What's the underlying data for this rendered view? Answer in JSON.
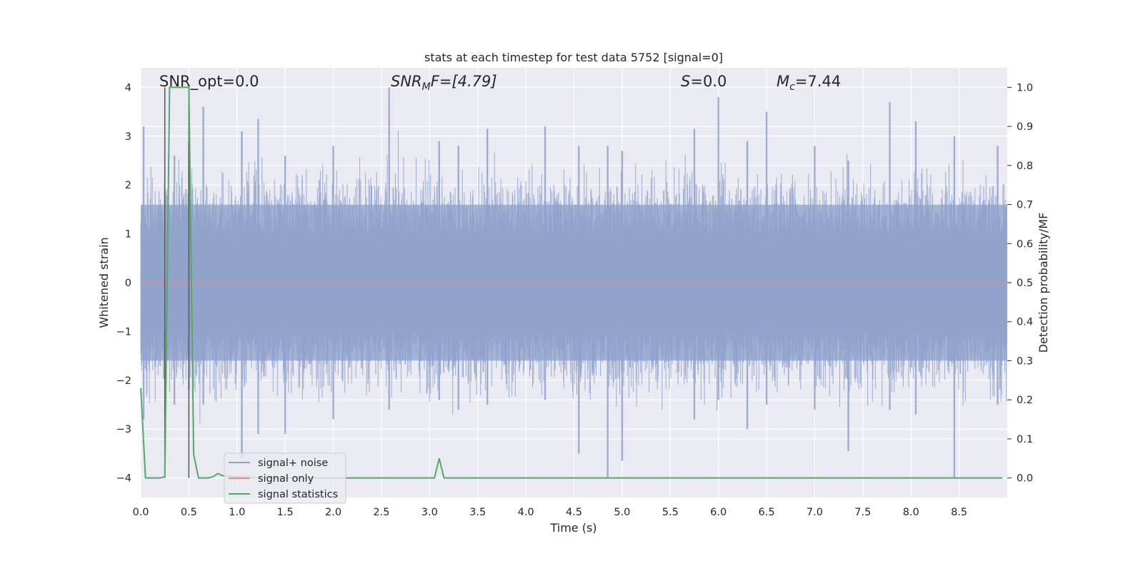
{
  "chart_data": {
    "type": "line",
    "title": "stats at each timestep for test data 5752 [signal=0]",
    "xlabel": "Time (s)",
    "ylabel_left": "Whitened strain",
    "ylabel_right": "Detection probability/MF",
    "xlim": [
      0,
      9.0
    ],
    "ylim_left": [
      -4.4,
      4.4
    ],
    "ylim_right": [
      -0.05,
      1.05
    ],
    "xticks": [
      "0.0",
      "0.5",
      "1.0",
      "1.5",
      "2.0",
      "2.5",
      "3.0",
      "3.5",
      "4.0",
      "4.5",
      "5.0",
      "5.5",
      "6.0",
      "6.5",
      "7.0",
      "7.5",
      "8.0",
      "8.5"
    ],
    "yticks_left": [
      "−4",
      "−3",
      "−2",
      "−1",
      "0",
      "1",
      "2",
      "3",
      "4"
    ],
    "yticks_right": [
      "0.0",
      "0.1",
      "0.2",
      "0.3",
      "0.4",
      "0.5",
      "0.6",
      "0.7",
      "0.8",
      "0.9",
      "1.0"
    ],
    "grid": true,
    "legend_position": "lower-left",
    "annotations": {
      "snr_opt": "SNR_opt=0.0",
      "snr_mf_base": "SNR",
      "snr_mf_sub": "M",
      "snr_mf_rest": "F=[4.79]",
      "s_label": "S",
      "s_value": "=0.0",
      "mc_base": "M",
      "mc_sub": "c",
      "mc_value": "=7.44"
    },
    "colors": {
      "signal_noise": "#8da0cb",
      "signal_only": "#e8927a",
      "statistics": "#55a868",
      "vline": "#555555",
      "background": "#eaeaf2",
      "grid": "#ffffff"
    },
    "series": [
      {
        "name": "signal+ noise",
        "axis": "left",
        "note_style": "dense noise",
        "envelope_peaks": [
          [
            0.03,
            3.2,
            -2.8
          ],
          [
            0.35,
            2.6,
            -2.5
          ],
          [
            0.5,
            2.9,
            -2.2
          ],
          [
            0.65,
            3.6,
            -2.5
          ],
          [
            1.05,
            3.1,
            -3.6
          ],
          [
            1.22,
            3.35,
            -3.1
          ],
          [
            1.5,
            2.6,
            -3.1
          ],
          [
            2.0,
            2.8,
            -2.8
          ],
          [
            2.58,
            4.0,
            -2.6
          ],
          [
            3.1,
            2.9,
            -2.4
          ],
          [
            3.3,
            2.8,
            -2.6
          ],
          [
            3.6,
            3.15,
            -2.5
          ],
          [
            4.2,
            3.2,
            -2.4
          ],
          [
            4.55,
            2.8,
            -3.5
          ],
          [
            4.85,
            2.8,
            -4.0
          ],
          [
            5.0,
            2.7,
            -3.65
          ],
          [
            5.75,
            3.15,
            -2.8
          ],
          [
            6.0,
            3.8,
            -2.4
          ],
          [
            6.3,
            2.9,
            -3.0
          ],
          [
            6.5,
            3.5,
            -2.5
          ],
          [
            7.0,
            2.8,
            -2.6
          ],
          [
            7.35,
            2.5,
            -3.45
          ],
          [
            7.78,
            3.7,
            -2.6
          ],
          [
            8.05,
            3.3,
            -2.7
          ],
          [
            8.45,
            3.0,
            -4.0
          ],
          [
            8.9,
            2.8,
            -2.5
          ]
        ]
      },
      {
        "name": "signal only",
        "axis": "left",
        "x": [
          0.0,
          9.0
        ],
        "y": [
          0.0,
          0.0
        ]
      },
      {
        "name": "signal statistics",
        "axis": "right",
        "x": [
          0.0,
          0.05,
          0.1,
          0.2,
          0.25,
          0.3,
          0.35,
          0.4,
          0.45,
          0.5,
          0.55,
          0.6,
          0.65,
          0.7,
          0.75,
          0.8,
          0.85,
          0.9,
          1.0,
          1.1,
          1.2,
          3.0,
          3.05,
          3.1,
          3.15,
          3.2,
          3.25,
          8.95
        ],
        "y": [
          0.23,
          0.0,
          0.0,
          0.0,
          0.003,
          1.0,
          1.0,
          1.0,
          1.0,
          1.0,
          0.06,
          0.0,
          0.0,
          0.0,
          0.003,
          0.011,
          0.006,
          0.004,
          0.003,
          0.002,
          0.0,
          0.0,
          0.0,
          0.05,
          0.0,
          0.0,
          0.0,
          0.0
        ]
      }
    ],
    "vlines": [
      0.25,
      0.5
    ]
  }
}
